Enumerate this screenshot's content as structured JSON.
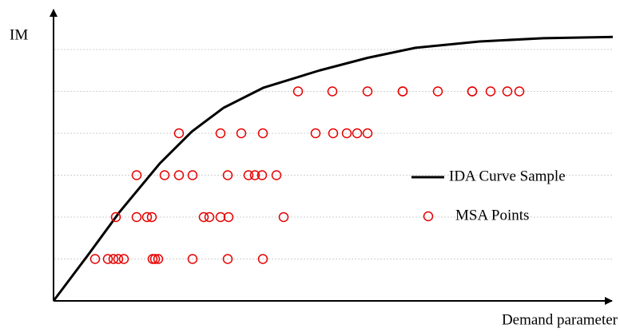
{
  "chart_data": {
    "type": "scatter",
    "x_label": "Demand parameter",
    "y_label": "IM",
    "xlim": [
      0,
      70
    ],
    "ylim": [
      0,
      7
    ],
    "yticks": [
      1,
      2,
      3,
      4,
      5,
      6
    ],
    "grid": true,
    "legend": "right",
    "series": [
      {
        "name": "IDA Curve Sample",
        "color": "#000000",
        "style": "line",
        "x": [
          0,
          4.3,
          8.3,
          13.3,
          17.3,
          21.3,
          26.3,
          33.3,
          39.3,
          45.3,
          53.3,
          61.3,
          70
        ],
        "values": [
          0,
          1.09,
          2.13,
          3.28,
          4.04,
          4.61,
          5.09,
          5.5,
          5.8,
          6.04,
          6.19,
          6.27,
          6.3
        ]
      },
      {
        "name": "MSA Points",
        "color": "#e60000",
        "style": "points",
        "x": [
          5.2,
          6.8,
          7.5,
          8.1,
          8.8,
          12.4,
          12.7,
          13.1,
          17.4,
          21.8,
          26.2,
          7.8,
          10.4,
          11.7,
          12.3,
          18.8,
          19.5,
          20.9,
          21.9,
          28.8,
          10.4,
          13.9,
          15.7,
          17.4,
          21.8,
          24.4,
          25.2,
          26.1,
          27.9,
          15.7,
          20.9,
          23.5,
          26.2,
          32.8,
          35,
          36.7,
          38,
          39.3,
          30.6,
          34.9,
          39.3,
          43.7,
          43.7,
          48.1,
          52.4,
          52.4,
          54.7,
          56.8,
          58.3
        ],
        "values": [
          1,
          1,
          1,
          1,
          1,
          1,
          1,
          1,
          1,
          1,
          1,
          2,
          2,
          2,
          2,
          2,
          2,
          2,
          2,
          2,
          3,
          3,
          3,
          3,
          3,
          3,
          3,
          3,
          3,
          4,
          4,
          4,
          4,
          4,
          4,
          4,
          4,
          4,
          5,
          5,
          5,
          5,
          5,
          5,
          5,
          5,
          5,
          5,
          5
        ]
      }
    ]
  }
}
